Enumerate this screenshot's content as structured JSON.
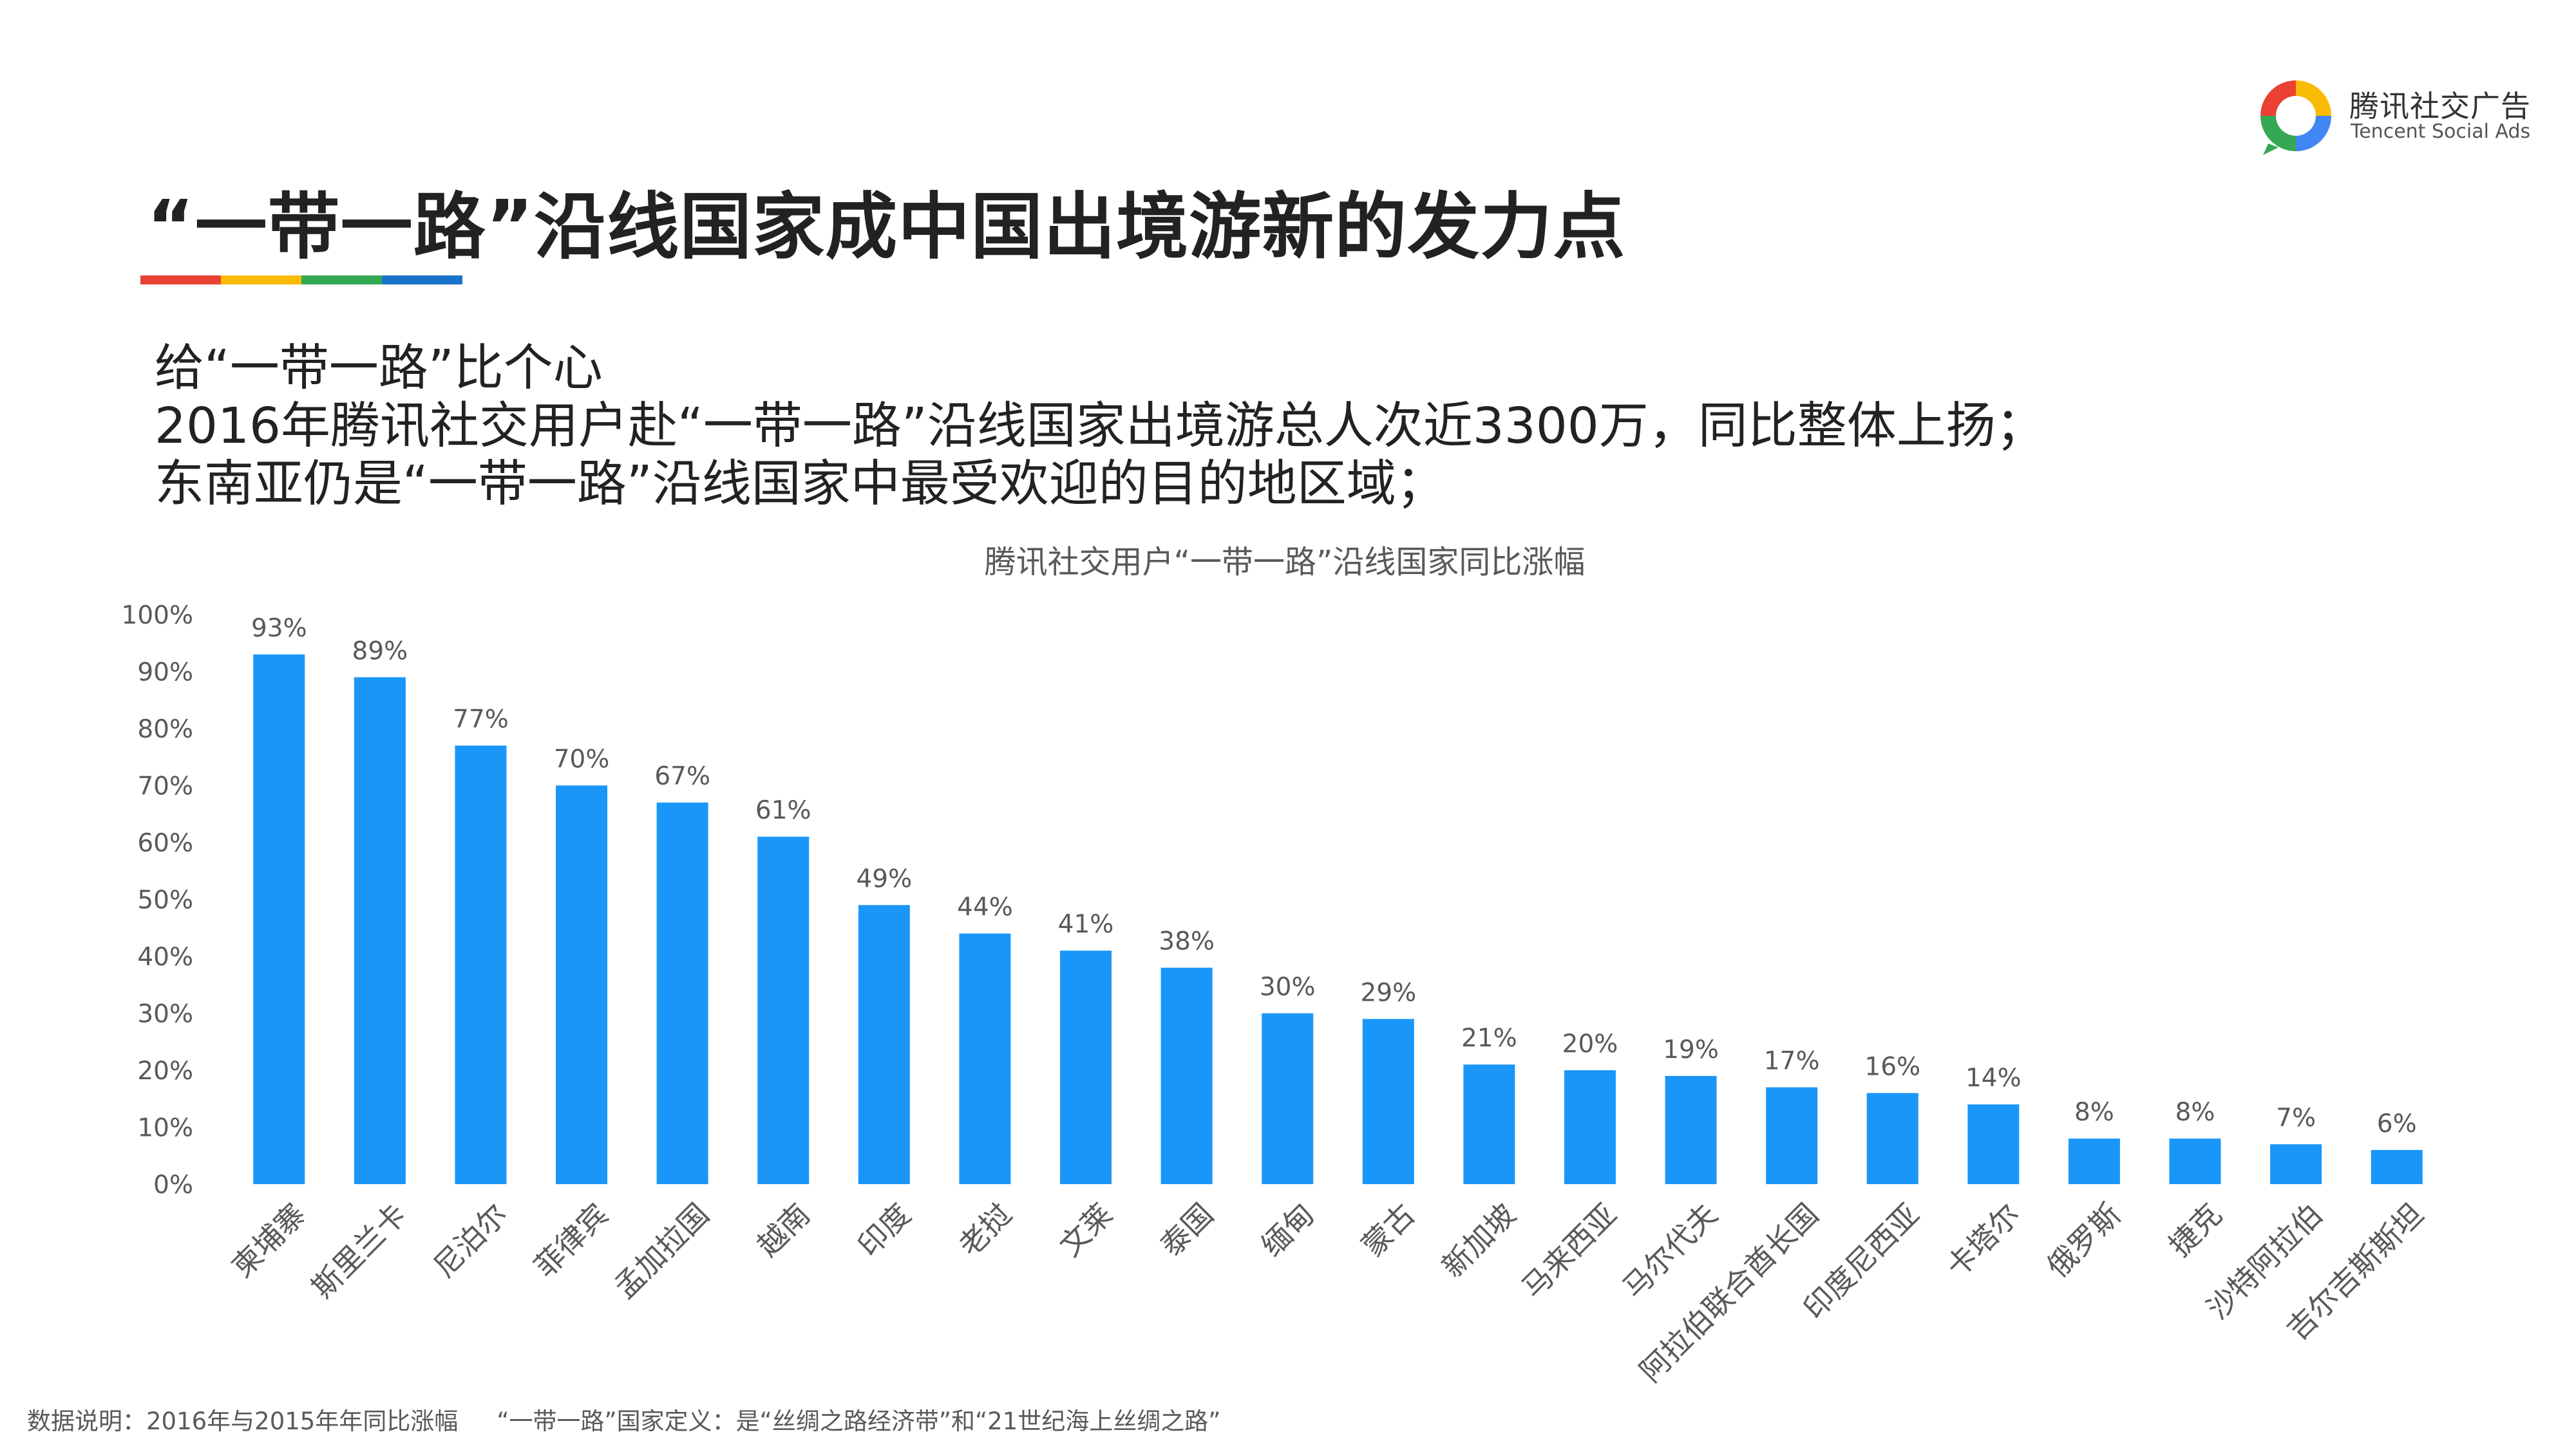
{
  "logo": {
    "name_cn": "腾讯社交广告",
    "name_en": "Tencent Social Ads",
    "icon": "tencent-social-ads-ring-icon",
    "colors": [
      "#e94235",
      "#fabb05",
      "#34a853",
      "#4285f4"
    ]
  },
  "title": "“一带一路”沿线国家成中国出境游新的发力点",
  "title_bar_colors": [
    "#e94235",
    "#fabb05",
    "#34a853",
    "#1a73c8"
  ],
  "subtitle": {
    "line1": "给“一带一路”比个心",
    "line2": "2016年腾讯社交用户赴“一带一路”沿线国家出境游总人次近3300万，同比整体上扬；",
    "line3": "东南亚仍是“一带一路”沿线国家中最受欢迎的目的地区域；"
  },
  "chart_data": {
    "type": "bar",
    "title": "腾讯社交用户“一带一路”沿线国家同比涨幅",
    "categories": [
      "柬埔寨",
      "斯里兰卡",
      "尼泊尔",
      "菲律宾",
      "孟加拉国",
      "越南",
      "印度",
      "老挝",
      "文莱",
      "泰国",
      "缅甸",
      "蒙古",
      "新加坡",
      "马来西亚",
      "马尔代夫",
      "阿拉伯联合酋长国",
      "印度尼西亚",
      "卡塔尔",
      "俄罗斯",
      "捷克",
      "沙特阿拉伯",
      "吉尔吉斯斯坦"
    ],
    "values": [
      93,
      89,
      77,
      70,
      67,
      61,
      49,
      44,
      41,
      38,
      30,
      29,
      21,
      20,
      19,
      17,
      16,
      14,
      8,
      8,
      7,
      6
    ],
    "data_labels": [
      "93%",
      "89%",
      "77%",
      "70%",
      "67%",
      "61%",
      "49%",
      "44%",
      "41%",
      "38%",
      "30%",
      "29%",
      "21%",
      "20%",
      "19%",
      "17%",
      "16%",
      "14%",
      "8%",
      "8%",
      "7%",
      "6%"
    ],
    "y_ticks": [
      "0%",
      "10%",
      "20%",
      "30%",
      "40%",
      "50%",
      "60%",
      "70%",
      "80%",
      "90%",
      "100%"
    ],
    "ylim": [
      0,
      100
    ],
    "grid": false,
    "bar_color": "#1a96f8"
  },
  "footer": {
    "note_left": "数据说明：2016年与2015年年同比涨幅",
    "note_right": "“一带一路”国家定义：是“丝绸之路经济带”和“21世纪海上丝绸之路”"
  }
}
